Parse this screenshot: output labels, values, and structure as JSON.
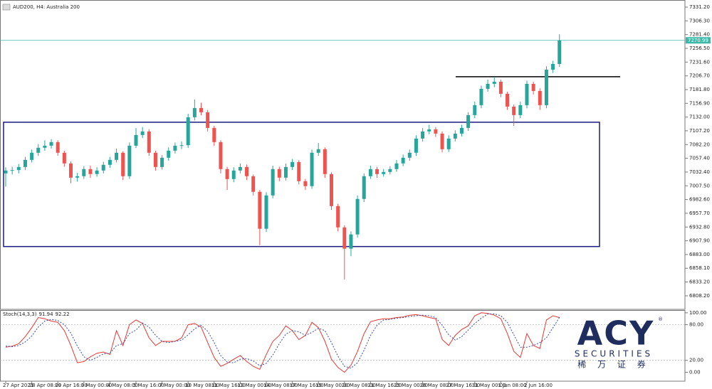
{
  "chart_data": [
    {
      "type": "candlestick",
      "title": "AUD200, H4: Australia 200",
      "categories": [
        "27 Apr 2021",
        null,
        null,
        null,
        "28 Apr 08:00",
        null,
        null,
        null,
        "29 Apr 16:00",
        null,
        null,
        null,
        "3 May 00:00",
        null,
        null,
        null,
        "4 May 08:00",
        null,
        null,
        null,
        "5 May 16:00",
        null,
        null,
        null,
        "7 May 00:00",
        null,
        null,
        null,
        "10 May 08:00",
        null,
        null,
        null,
        "11 May 16:00",
        null,
        null,
        null,
        "13 May 00:00",
        null,
        null,
        null,
        "14 May 08:00",
        null,
        null,
        null,
        "17 May 16:00",
        null,
        null,
        null,
        "19 May 00:00",
        null,
        null,
        null,
        "20 May 08:00",
        null,
        null,
        null,
        "21 May 16:00",
        null,
        null,
        null,
        "25 May 00:00",
        null,
        null,
        null,
        "26 May 08:00",
        null,
        null,
        null,
        "27 May 16:00",
        null,
        null,
        null,
        "31 May 00:00",
        null,
        null,
        null,
        "1 Jun 08:00",
        null,
        null,
        null,
        "2 Jun 16:00",
        null,
        null,
        null,
        null,
        null
      ],
      "open": [
        7030.0,
        7035.2,
        7036.0,
        7041.6,
        7054.5,
        7067.4,
        7076.4,
        7080.2,
        7086.7,
        7067.4,
        7048.1,
        7022.3,
        7024.9,
        7037.8,
        7028.8,
        7035.2,
        7045.5,
        7054.5,
        7067.4,
        7024.9,
        7080.2,
        7099.5,
        7106.0,
        7067.4,
        7041.6,
        7058.4,
        7071.2,
        7080.2,
        7081.0,
        7131.7,
        7148.4,
        7140.7,
        7112.4,
        7086.7,
        7037.8,
        7019.7,
        7035.2,
        7041.6,
        7024.9,
        6996.6,
        6929.7,
        6990.1,
        7037.8,
        7022.3,
        7041.6,
        7050.6,
        7015.9,
        7006.9,
        7067.4,
        7073.8,
        7028.8,
        6970.8,
        6932.2,
        6893.6,
        6919.4,
        6983.7,
        7024.9,
        7037.8,
        7028.8,
        7032.6,
        7037.8,
        7048.1,
        7058.4,
        7067.4,
        7093.1,
        7106.0,
        7109.8,
        7102.1,
        7073.8,
        7093.1,
        7102.1,
        7112.4,
        7135.6,
        7153.6,
        7183.2,
        7192.2,
        7196.1,
        7174.2,
        7151.0,
        7135.6,
        7153.6,
        7192.2,
        7179.3,
        7153.6,
        7217.9,
        7228.2
      ],
      "high": [
        7041.0,
        7042.0,
        7047.0,
        7060.0,
        7073.0,
        7083.0,
        7090.0,
        7092.0,
        7090.0,
        7071.0,
        7052.0,
        7031.0,
        7043.0,
        7044.0,
        7041.0,
        7051.0,
        7060.0,
        7075.0,
        7070.0,
        7086.0,
        7112.0,
        7114.0,
        7110.0,
        7071.0,
        7063.0,
        7077.0,
        7086.0,
        7088.0,
        7138.0,
        7164.0,
        7158.0,
        7145.0,
        7116.0,
        7090.0,
        7042.0,
        7041.0,
        7048.0,
        7046.0,
        7028.0,
        7000.0,
        6996.0,
        7044.0,
        7042.0,
        7048.0,
        7056.0,
        7054.0,
        7020.0,
        7073.0,
        7085.0,
        7077.0,
        7032.0,
        6975.0,
        6936.0,
        6925.0,
        6990.0,
        7030.0,
        7044.0,
        7042.0,
        7038.0,
        7043.0,
        7054.0,
        7064.0,
        7073.0,
        7099.0,
        7112.0,
        7118.0,
        7114.0,
        7106.0,
        7099.0,
        7108.0,
        7118.0,
        7141.0,
        7160.0,
        7189.0,
        7200.0,
        7205.0,
        7200.0,
        7178.0,
        7155.0,
        7160.0,
        7198.0,
        7196.0,
        7184.0,
        7224.0,
        7234.0,
        7282.0
      ],
      "low": [
        7006.0,
        7028.0,
        7030.0,
        7036.0,
        7050.0,
        7062.0,
        7071.0,
        7075.0,
        7062.0,
        7042.0,
        7012.0,
        7015.0,
        7020.0,
        7022.0,
        7024.0,
        7030.0,
        7040.0,
        7050.0,
        7018.0,
        7020.0,
        7076.0,
        7094.0,
        7062.0,
        7035.0,
        7037.0,
        7053.0,
        7066.0,
        7074.0,
        7076.0,
        7126.0,
        7135.0,
        7106.0,
        7080.0,
        7030.0,
        7000.0,
        7014.0,
        7030.0,
        7018.0,
        6990.0,
        6900.0,
        6924.0,
        6985.0,
        7016.0,
        7017.0,
        7036.0,
        7010.0,
        7000.0,
        7002.0,
        7062.0,
        7022.0,
        6964.0,
        6925.0,
        6838.0,
        6880.0,
        6914.0,
        6978.0,
        7020.0,
        7022.0,
        7024.0,
        7028.0,
        7033.0,
        7043.0,
        7053.0,
        7062.0,
        7088.0,
        7101.0,
        7096.0,
        7068.0,
        7069.0,
        7088.0,
        7097.0,
        7107.0,
        7130.0,
        7148.0,
        7178.0,
        7186.0,
        7168.0,
        7145.0,
        7116.0,
        7130.0,
        7148.0,
        7173.0,
        7145.0,
        7148.0,
        7212.0,
        7223.0
      ],
      "close": [
        7035.2,
        7036.0,
        7041.6,
        7054.5,
        7067.4,
        7076.4,
        7080.2,
        7086.7,
        7067.4,
        7048.1,
        7022.3,
        7024.9,
        7037.8,
        7028.8,
        7035.2,
        7045.5,
        7054.5,
        7067.4,
        7024.9,
        7080.2,
        7099.5,
        7106.0,
        7067.4,
        7041.6,
        7058.4,
        7071.2,
        7080.2,
        7081.0,
        7131.7,
        7148.4,
        7140.7,
        7112.4,
        7086.7,
        7037.8,
        7019.7,
        7035.2,
        7041.6,
        7024.9,
        6996.6,
        6929.7,
        6990.1,
        7037.8,
        7022.3,
        7041.6,
        7050.6,
        7015.9,
        7006.9,
        7067.4,
        7073.8,
        7028.8,
        6970.8,
        6932.2,
        6893.6,
        6919.4,
        6983.7,
        7024.9,
        7037.8,
        7028.8,
        7032.6,
        7037.8,
        7048.1,
        7058.4,
        7067.4,
        7093.1,
        7106.0,
        7109.8,
        7102.1,
        7073.8,
        7093.1,
        7102.1,
        7112.4,
        7135.6,
        7153.6,
        7183.2,
        7192.2,
        7196.1,
        7174.2,
        7151.0,
        7135.6,
        7153.6,
        7192.2,
        7179.3,
        7153.6,
        7217.9,
        7228.2,
        7270.99
      ],
      "up_color": "#26a69a",
      "down_color": "#ef5350",
      "ylim": [
        6783.7,
        7344.1
      ],
      "yticks": [
        {
          "value": 7331.2,
          "label": "7331.20"
        },
        {
          "value": 7306.3,
          "label": "7306.30"
        },
        {
          "value": 7281.4,
          "label": "7281.40"
        },
        {
          "value": 7256.5,
          "label": "7256.50"
        },
        {
          "value": 7231.6,
          "label": "7231.60"
        },
        {
          "value": 7206.7,
          "label": "7206.70"
        },
        {
          "value": 7181.8,
          "label": "7181.80"
        },
        {
          "value": 7156.9,
          "label": "7156.90"
        },
        {
          "value": 7132,
          "label": "7132.00"
        },
        {
          "value": 7107.2,
          "label": "7107.20"
        },
        {
          "value": 7082.2,
          "label": "7082.20"
        },
        {
          "value": 7057.4,
          "label": "7057.40"
        },
        {
          "value": 7032.4,
          "label": "7032.40"
        },
        {
          "value": 7007.5,
          "label": "7007.50"
        },
        {
          "value": 6982.6,
          "label": "6982.60"
        },
        {
          "value": 6957.7,
          "label": "6957.70"
        },
        {
          "value": 6932.8,
          "label": "6932.80"
        },
        {
          "value": 6907.9,
          "label": "6907.90"
        },
        {
          "value": 6883,
          "label": "6883.00"
        },
        {
          "value": 6858.1,
          "label": "6858.10"
        },
        {
          "value": 6833.2,
          "label": "6833.20"
        },
        {
          "value": 6808.2,
          "label": "6808.20"
        }
      ],
      "last_price": 7270.99,
      "last_price_color": "#3cb8a8",
      "range_box": {
        "top": 7122.7,
        "bottom": 6897.5,
        "color": "#1a1a80"
      },
      "resistance": {
        "value": 7205.1,
        "color": "#000000"
      }
    },
    {
      "type": "line",
      "title": "Stoch(14,3,3)",
      "series": [
        {
          "name": "%K",
          "color": "#e53935",
          "style": "solid",
          "values": [
            42,
            44,
            48,
            60,
            75,
            92,
            90,
            86,
            84,
            70,
            45,
            16,
            18,
            26,
            32,
            34,
            30,
            70,
            45,
            80,
            88,
            82,
            58,
            45,
            52,
            52,
            52,
            58,
            80,
            82,
            76,
            50,
            25,
            10,
            15,
            22,
            28,
            18,
            10,
            5,
            30,
            52,
            62,
            78,
            70,
            55,
            62,
            84,
            75,
            52,
            22,
            8,
            0,
            12,
            35,
            65,
            85,
            88,
            90,
            90,
            92,
            93,
            96,
            97,
            95,
            92,
            90,
            55,
            45,
            62,
            72,
            78,
            95,
            100,
            99,
            96,
            90,
            65,
            35,
            25,
            65,
            45,
            40,
            88,
            95,
            91.94
          ]
        },
        {
          "name": "%D",
          "color": "#3949ab",
          "style": "dashed",
          "values": [
            44,
            43,
            45,
            51,
            61,
            76,
            86,
            89,
            87,
            80,
            66,
            44,
            26,
            20,
            25,
            31,
            32,
            45,
            48,
            65,
            71,
            83,
            76,
            62,
            52,
            50,
            52,
            54,
            63,
            73,
            79,
            69,
            50,
            28,
            17,
            16,
            22,
            23,
            19,
            11,
            15,
            29,
            48,
            64,
            70,
            68,
            62,
            67,
            74,
            70,
            50,
            27,
            10,
            7,
            16,
            37,
            62,
            79,
            88,
            89,
            91,
            92,
            94,
            95,
            96,
            95,
            92,
            79,
            63,
            54,
            60,
            71,
            82,
            91,
            98,
            98,
            95,
            84,
            63,
            42,
            42,
            45,
            50,
            58,
            75,
            92.22
          ]
        }
      ],
      "ylim": [
        -15,
        103.4
      ],
      "yticks": [
        {
          "value": 100,
          "label": "100.00"
        },
        {
          "value": 80,
          "label": "80.00"
        },
        {
          "value": 20,
          "label": "20.00"
        },
        {
          "value": 0,
          "label": "0.00"
        }
      ],
      "levels": [
        80,
        20
      ]
    }
  ],
  "logo": {
    "brand": "ACY",
    "mark": "®",
    "line1": "SECURITIES",
    "line2": "稀 万 证 券"
  }
}
